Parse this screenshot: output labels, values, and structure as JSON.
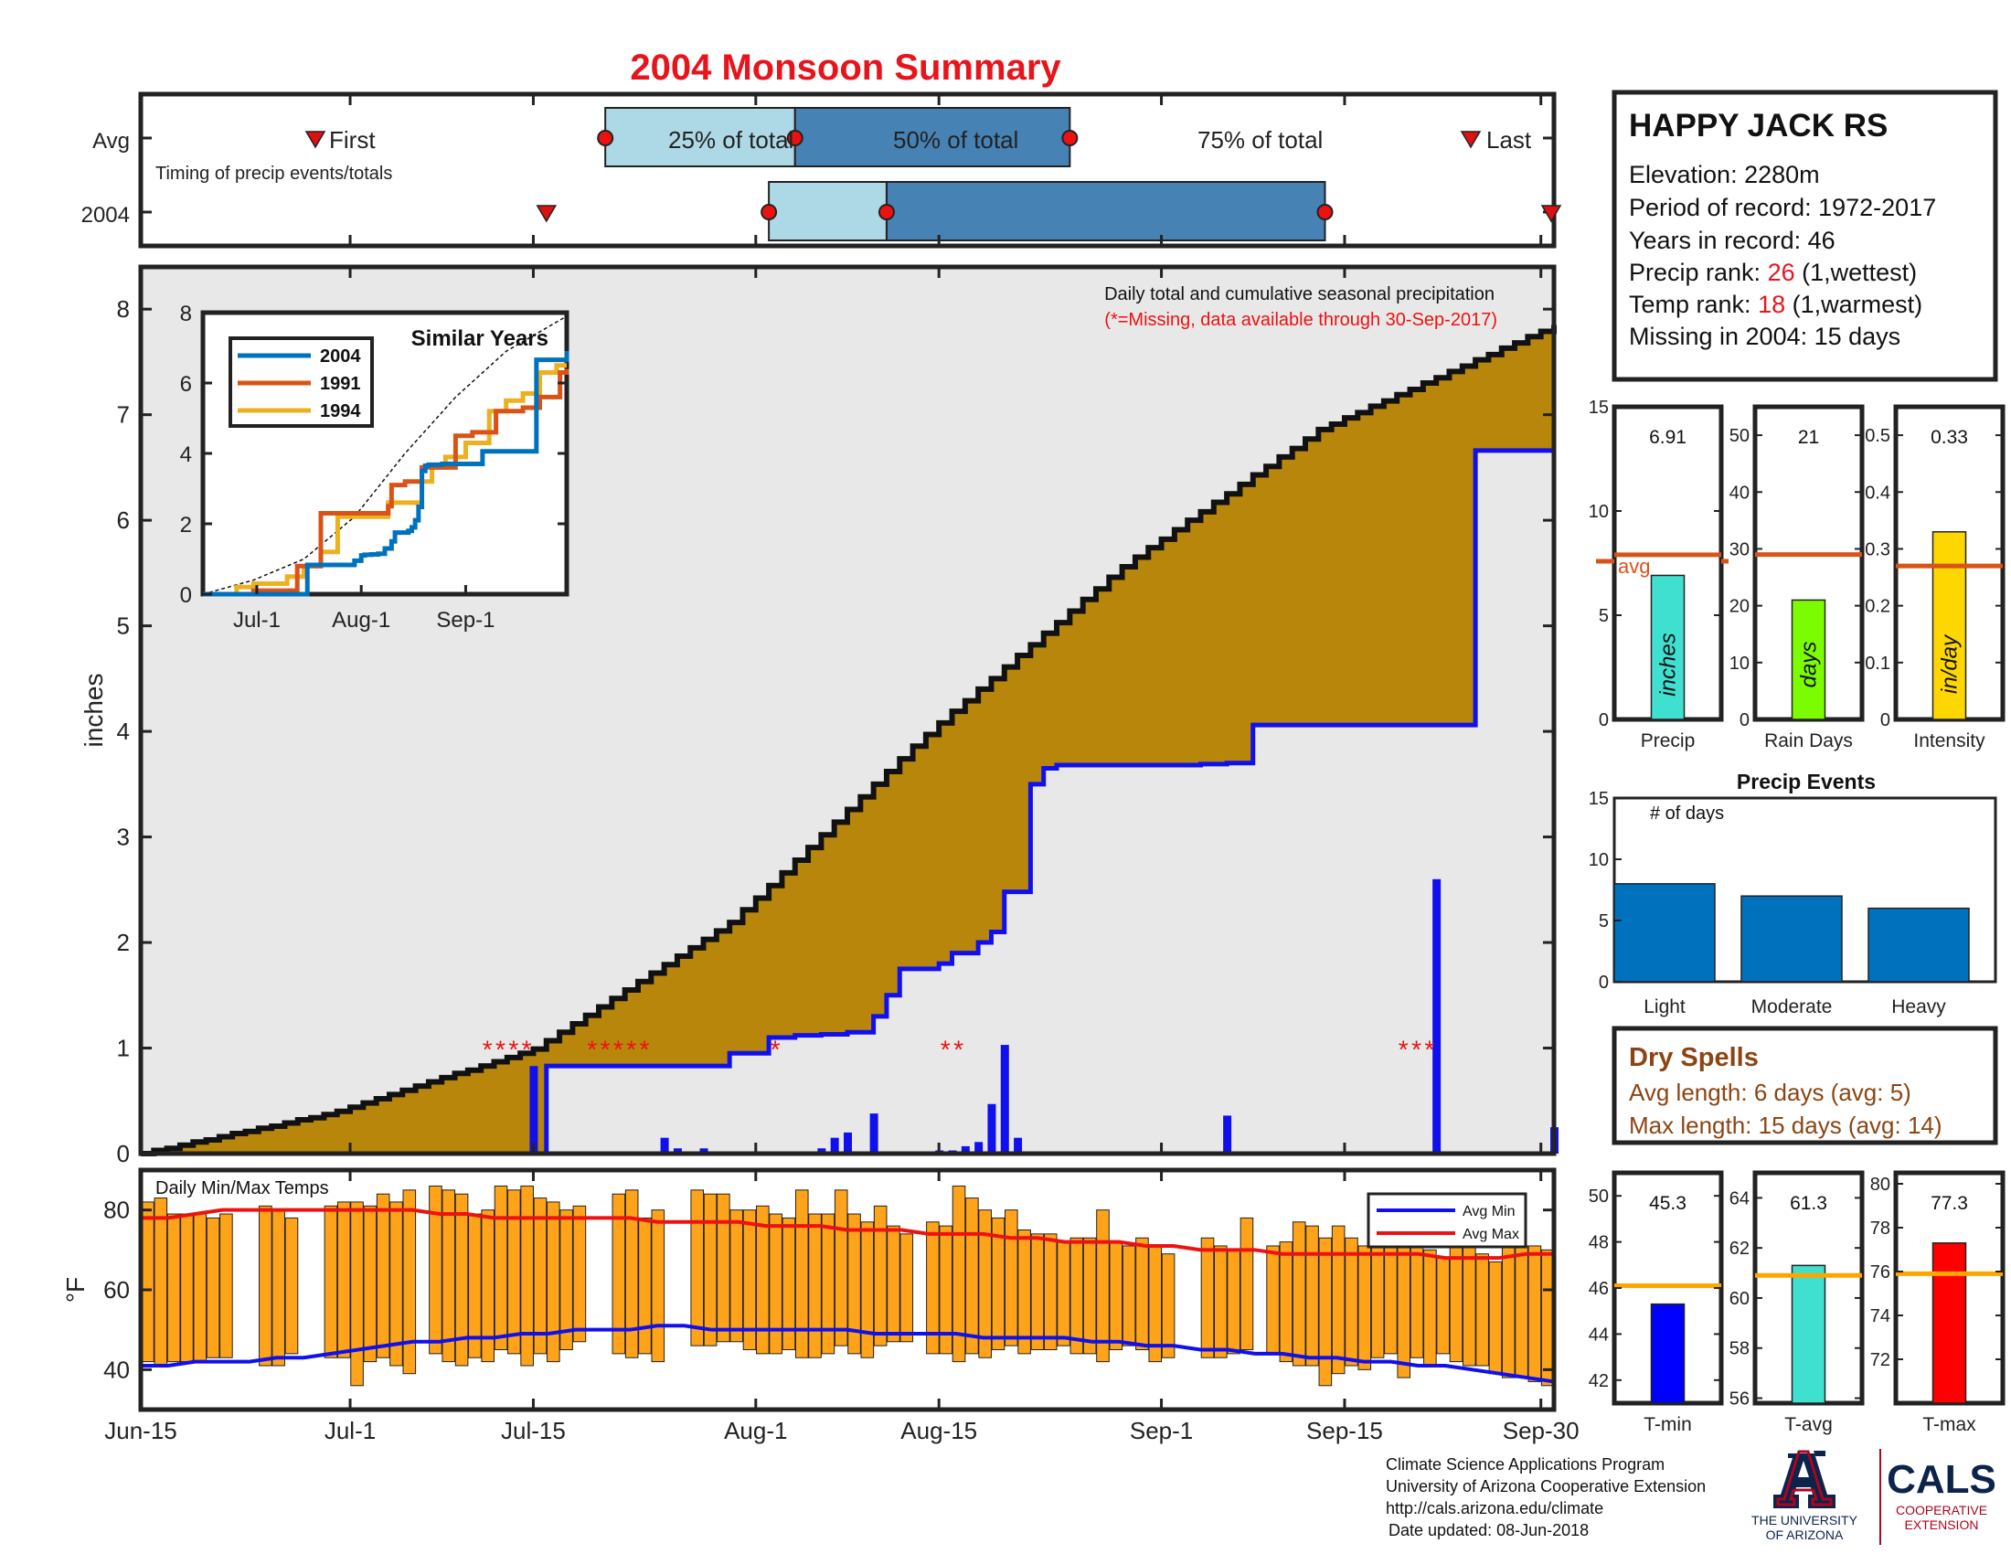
{
  "title": "2004 Monsoon Summary",
  "colors": {
    "title": "#e8141c",
    "cum": "#b8860b",
    "daily": "#1010ee",
    "dry_text": "#8b4513",
    "light_box": "#add8e6",
    "dark_box": "#4682b4",
    "avg_line": "#d95319",
    "temp_bar": "#ffa31a",
    "temp_avg_line": "#ffa500",
    "missing": "#ee1111",
    "ua_navy": "#0c234b",
    "ua_red": "#ab0520"
  },
  "timing": {
    "avg_label": "Avg",
    "year_label": "2004",
    "note": "Timing of precip events/totals",
    "first": "First",
    "last": "Last",
    "p25": "25% of total",
    "p50": "50% of total",
    "p75": "75% of total"
  },
  "station": {
    "name": "HAPPY JACK RS",
    "elevation": "Elevation: 2280m",
    "period": "Period of record: 1972-2017",
    "years": "Years in record: 46",
    "precip_rank_label": "Precip rank: ",
    "precip_rank": "26",
    "precip_rank_note": " (1,wettest)",
    "temp_rank_label": "Temp rank: ",
    "temp_rank": "18",
    "temp_rank_note": " (1,warmest)",
    "missing": "Missing in 2004: 15 days"
  },
  "main": {
    "ylabel": "inches",
    "note1": "Daily total and cumulative seasonal precipitation",
    "note2": "(*=Missing, data available through 30-Sep-2017)",
    "x_ticks": [
      "Jun-15",
      "Jul-1",
      "Jul-15",
      "Aug-1",
      "Aug-15",
      "Sep-1",
      "Sep-15",
      "Sep-30"
    ],
    "y_ticks": [
      "0",
      "1",
      "2",
      "3",
      "4",
      "5",
      "6",
      "7",
      "8"
    ]
  },
  "inset": {
    "title": "Similar Years",
    "legend": [
      "2004",
      "1991",
      "1994"
    ],
    "x_ticks": [
      "Jul-1",
      "Aug-1",
      "Sep-1"
    ],
    "y_ticks": [
      "0",
      "2",
      "4",
      "6",
      "8"
    ]
  },
  "temps": {
    "title": "Daily Min/Max Temps",
    "ylabel": "°F",
    "legend_min": "Avg Min",
    "legend_max": "Avg Max",
    "y_ticks": [
      "40",
      "60",
      "80"
    ]
  },
  "summary_bars": {
    "precip": {
      "value_label": "6.91",
      "unit": "inches",
      "name": "Precip",
      "avg_label": "avg",
      "ticks": [
        "0",
        "5",
        "10",
        "15"
      ]
    },
    "raindays": {
      "value_label": "21",
      "unit": "days",
      "name": "Rain Days",
      "ticks": [
        "0",
        "10",
        "20",
        "30",
        "40",
        "50"
      ]
    },
    "intensity": {
      "value_label": "0.33",
      "unit": "in/day",
      "name": "Intensity",
      "ticks": [
        "0",
        "0.1",
        "0.2",
        "0.3",
        "0.4",
        "0.5"
      ]
    }
  },
  "events": {
    "title": "Precip Events",
    "ylabel": "# of days",
    "categories": [
      "Light",
      "Moderate",
      "Heavy"
    ],
    "ticks": [
      "0",
      "5",
      "10",
      "15"
    ]
  },
  "dry_spells": {
    "title": "Dry Spells",
    "avg": "Avg length: 6 days (avg: 5)",
    "max": "Max length: 15 days (avg: 14)"
  },
  "temp_bars": {
    "tmin": {
      "value_label": "45.3",
      "name": "T-min",
      "ticks": [
        "42",
        "44",
        "46",
        "48",
        "50"
      ]
    },
    "tavg": {
      "value_label": "61.3",
      "name": "T-avg",
      "ticks": [
        "56",
        "58",
        "60",
        "62",
        "64"
      ]
    },
    "tmax": {
      "value_label": "77.3",
      "name": "T-max",
      "ticks": [
        "72",
        "74",
        "76",
        "78",
        "80"
      ]
    }
  },
  "footer": {
    "l1": "Climate Science Applications Program",
    "l2": "University of Arizona Cooperative Extension",
    "l3": "http://cals.arizona.edu/climate",
    "l4": "Date updated: 08-Jun-2018",
    "ua1": "THE UNIVERSITY",
    "ua2": "OF ARIZONA",
    "cals": "CALS",
    "cals1": "COOPERATIVE",
    "cals2": "EXTENSION"
  },
  "chart_data": [
    {
      "type": "area",
      "title": "Daily total and cumulative seasonal precipitation",
      "ylabel": "inches",
      "xlim": [
        "Jun-15",
        "Sep-30"
      ],
      "ylim": [
        0,
        8.4
      ],
      "series": [
        {
          "name": "2004",
          "x": [
            0,
            30,
            31,
            44,
            45,
            47,
            48,
            49,
            50,
            51,
            52,
            53,
            54,
            55,
            56,
            57,
            58,
            59,
            60,
            61,
            62,
            63,
            64,
            65,
            66,
            67,
            68,
            69,
            70,
            71,
            72,
            73,
            74,
            75,
            76,
            77,
            78,
            79,
            80,
            81,
            82,
            83,
            84,
            85,
            86,
            87,
            88,
            89,
            90,
            91,
            92,
            93,
            94,
            95,
            96,
            97,
            98,
            99,
            100,
            101,
            102,
            103,
            104,
            105,
            106,
            107,
            108
          ],
          "values": [
            0,
            0,
            0.83,
            0.83,
            0.95,
            0.95,
            1.1,
            1.1,
            1.12,
            1.12,
            1.13,
            1.13,
            1.15,
            1.15,
            1.3,
            1.5,
            1.75,
            1.75,
            1.75,
            1.8,
            1.9,
            1.9,
            2.0,
            2.1,
            2.48,
            2.48,
            3.5,
            3.65,
            3.68,
            3.68,
            3.68,
            3.68,
            3.68,
            3.68,
            3.68,
            3.68,
            3.68,
            3.68,
            3.68,
            3.69,
            3.69,
            3.7,
            3.7,
            4.06,
            4.06,
            4.06,
            4.06,
            4.06,
            4.06,
            4.06,
            4.06,
            4.06,
            4.06,
            4.06,
            4.06,
            4.06,
            4.06,
            4.06,
            4.06,
            4.06,
            6.66,
            6.66,
            6.66,
            6.66,
            6.66,
            6.66,
            6.91
          ]
        }
      ],
      "daily_precip": {
        "x": [
          30,
          40,
          41,
          43,
          52,
          53,
          54,
          56,
          61,
          62,
          63,
          64,
          65,
          66,
          67,
          71,
          83,
          99,
          108
        ],
        "values": [
          0.83,
          0.15,
          0.05,
          0.05,
          0.05,
          0.15,
          0.2,
          0.38,
          0.03,
          0.03,
          0.07,
          0.11,
          0.47,
          1.03,
          0.15,
          0.02,
          0.36,
          2.6,
          0.25
        ]
      },
      "missing_days": [
        26,
        27,
        28,
        29,
        34,
        35,
        36,
        37,
        38,
        48,
        61,
        62,
        96,
        97,
        98
      ]
    },
    {
      "type": "line",
      "title": "Similar Years",
      "x_ticks": [
        "Jul-1",
        "Aug-1",
        "Sep-1"
      ],
      "ylim": [
        0,
        8
      ],
      "series": [
        {
          "name": "2004",
          "x": [
            0,
            16,
            31,
            44,
            45,
            47,
            48,
            50,
            52,
            54,
            56,
            57,
            58,
            61,
            62,
            63,
            64,
            65,
            66,
            67,
            68,
            71,
            83,
            99,
            108
          ],
          "values": [
            0,
            0,
            0.83,
            0.83,
            0.95,
            1.1,
            1.12,
            1.13,
            1.15,
            1.3,
            1.5,
            1.75,
            1.75,
            1.8,
            1.9,
            2.1,
            2.48,
            3.5,
            3.65,
            3.68,
            3.68,
            3.7,
            4.06,
            6.66,
            6.91
          ]
        },
        {
          "name": "1991",
          "x": [
            0,
            15,
            20,
            28,
            33,
            35,
            55,
            56,
            60,
            65,
            70,
            75,
            80,
            87,
            95,
            100,
            106,
            108
          ],
          "values": [
            0,
            0.1,
            0.1,
            0.8,
            0.8,
            2.3,
            2.5,
            3.1,
            3.2,
            3.6,
            3.6,
            4.5,
            4.6,
            5.2,
            5.3,
            5.6,
            6.3,
            6.4
          ]
        },
        {
          "name": "1994",
          "x": [
            0,
            10,
            15,
            25,
            30,
            35,
            40,
            55,
            65,
            68,
            72,
            78,
            85,
            90,
            95,
            100,
            105,
            108
          ],
          "values": [
            0,
            0.2,
            0.3,
            0.5,
            0.8,
            1.2,
            2.2,
            2.6,
            3.2,
            3.6,
            3.9,
            4.3,
            5.2,
            5.5,
            5.7,
            6.3,
            6.5,
            6.5
          ]
        },
        {
          "name": "Avg",
          "x": [
            0,
            15,
            30,
            45,
            60,
            75,
            90,
            108
          ],
          "values": [
            0,
            0.4,
            1.0,
            2.2,
            4.0,
            5.6,
            6.9,
            7.9
          ]
        }
      ]
    },
    {
      "type": "bar",
      "title": "Daily Min/Max Temps",
      "ylim": [
        30,
        90
      ],
      "x_days": [
        1,
        2,
        3,
        4,
        5,
        6,
        7,
        10,
        11,
        12,
        15,
        16,
        17,
        18,
        19,
        20,
        21,
        23,
        24,
        25,
        26,
        27,
        28,
        29,
        30,
        31,
        32,
        33,
        34,
        37,
        38,
        39,
        40,
        43,
        44,
        45,
        46,
        47,
        48,
        49,
        50,
        51,
        52,
        53,
        54,
        55,
        56,
        57,
        58,
        59,
        61,
        62,
        63,
        64,
        65,
        66,
        67,
        68,
        69,
        70,
        71,
        72,
        73,
        74,
        75,
        76,
        77,
        78,
        79,
        82,
        83,
        84,
        85,
        87,
        88,
        89,
        90,
        91,
        92,
        93,
        94,
        95,
        96,
        97,
        98,
        99,
        100,
        101,
        102,
        103,
        104,
        105,
        106,
        107,
        108
      ],
      "tmin": [
        42,
        41,
        42,
        42,
        42,
        43,
        43,
        41,
        41,
        44,
        43,
        43,
        36,
        42,
        43,
        41,
        39,
        44,
        42,
        41,
        43,
        42,
        45,
        44,
        41,
        44,
        42,
        45,
        47,
        44,
        43,
        44,
        42,
        46,
        46,
        47,
        47,
        45,
        44,
        44,
        45,
        43,
        43,
        44,
        46,
        44,
        43,
        46,
        47,
        47,
        44,
        44,
        42,
        44,
        43,
        45,
        46,
        44,
        45,
        45,
        46,
        44,
        44,
        42,
        45,
        46,
        45,
        42,
        43,
        43,
        43,
        44,
        45,
        44,
        42,
        41,
        41,
        36,
        39,
        41,
        40,
        43,
        44,
        38,
        43,
        41,
        44,
        42,
        41,
        41,
        39,
        38,
        38,
        37,
        36
      ],
      "tmax": [
        82,
        83,
        79,
        79,
        79,
        78,
        79,
        81,
        80,
        78,
        81,
        82,
        82,
        81,
        84,
        82,
        85,
        86,
        85,
        84,
        79,
        80,
        86,
        85,
        86,
        83,
        82,
        80,
        81,
        84,
        85,
        78,
        80,
        85,
        84,
        84,
        80,
        80,
        81,
        79,
        78,
        85,
        79,
        79,
        85,
        79,
        77,
        81,
        76,
        74,
        77,
        76,
        86,
        83,
        80,
        78,
        80,
        75,
        74,
        74,
        72,
        73,
        73,
        80,
        72,
        71,
        73,
        71,
        69,
        73,
        71,
        70,
        78,
        71,
        72,
        77,
        76,
        73,
        76,
        73,
        71,
        75,
        75,
        74,
        71,
        70,
        68,
        74,
        72,
        69,
        67,
        72,
        71,
        71,
        70
      ],
      "avg_min": [
        41,
        41,
        42,
        42,
        42,
        43,
        43,
        44,
        45,
        46,
        47,
        47,
        48,
        48,
        49,
        49,
        50,
        50,
        50,
        51,
        51,
        50,
        50,
        50,
        50,
        50,
        50,
        49,
        49,
        49,
        49,
        48,
        48,
        48,
        48,
        47,
        47,
        46,
        46,
        45,
        45,
        44,
        44,
        43,
        43,
        42,
        42,
        41,
        41,
        40,
        39,
        38,
        37
      ],
      "avg_max": [
        78,
        78,
        79,
        80,
        80,
        80,
        80,
        80,
        80,
        80,
        80,
        79,
        79,
        78,
        78,
        78,
        78,
        78,
        78,
        77,
        77,
        77,
        77,
        76,
        76,
        76,
        75,
        75,
        75,
        74,
        74,
        74,
        73,
        73,
        72,
        72,
        72,
        71,
        71,
        70,
        70,
        70,
        69,
        69,
        69,
        69,
        69,
        69,
        68,
        68,
        68,
        69,
        69
      ]
    },
    {
      "type": "bar",
      "categories": [
        "Precip"
      ],
      "values": [
        6.91
      ],
      "avg": 7.9,
      "ylim": [
        0,
        15
      ]
    },
    {
      "type": "bar",
      "categories": [
        "Rain Days"
      ],
      "values": [
        21
      ],
      "avg": 29,
      "ylim": [
        0,
        55
      ]
    },
    {
      "type": "bar",
      "categories": [
        "Intensity"
      ],
      "values": [
        0.33
      ],
      "avg": 0.27,
      "ylim": [
        0,
        0.55
      ]
    },
    {
      "type": "bar",
      "title": "Precip Events",
      "categories": [
        "Light",
        "Moderate",
        "Heavy"
      ],
      "values": [
        8,
        7,
        6
      ],
      "ylim": [
        0,
        15
      ]
    },
    {
      "type": "bar",
      "categories": [
        "T-min"
      ],
      "values": [
        45.3
      ],
      "avg": 46.1,
      "ylim": [
        41,
        51
      ]
    },
    {
      "type": "bar",
      "categories": [
        "T-avg"
      ],
      "values": [
        61.3
      ],
      "avg": 60.9,
      "ylim": [
        55.8,
        65
      ]
    },
    {
      "type": "bar",
      "categories": [
        "T-max"
      ],
      "values": [
        77.3
      ],
      "avg": 75.9,
      "ylim": [
        70,
        80.5
      ]
    }
  ]
}
